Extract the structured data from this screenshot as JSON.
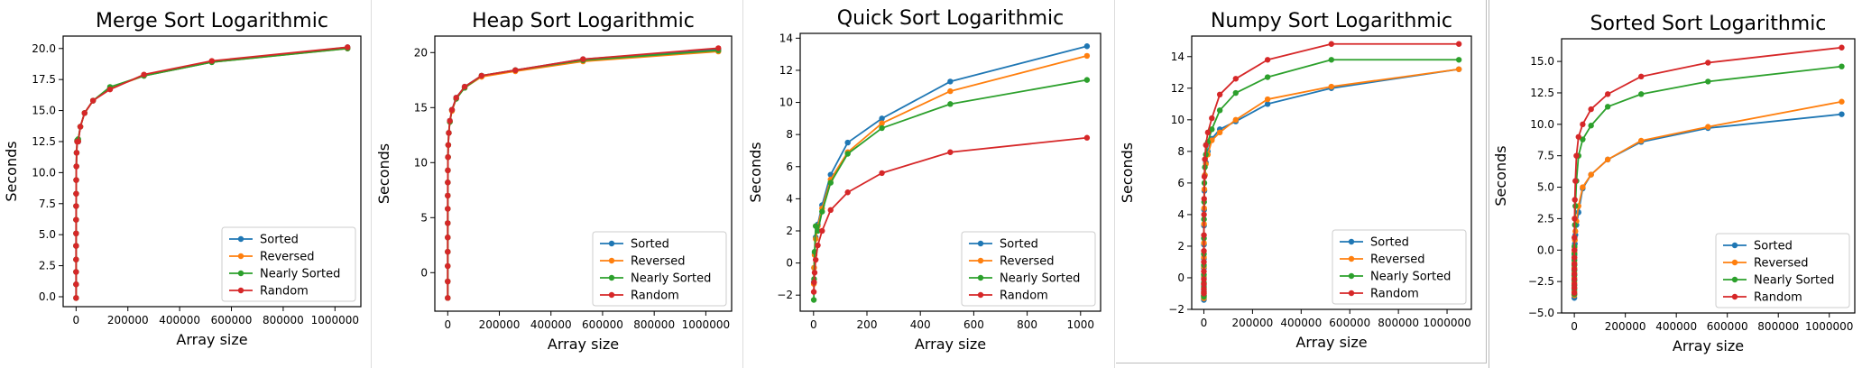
{
  "figure": {
    "series_colors": [
      "#1f77b4",
      "#ff7f0e",
      "#2ca02c",
      "#d62728"
    ]
  },
  "chart_data": [
    {
      "type": "line",
      "title": "Merge Sort Logarithmic",
      "xlabel": "Array size",
      "ylabel": "Seconds",
      "xlim": [
        -50000,
        1100000
      ],
      "ylim": [
        -0.8,
        21
      ],
      "xticks": [
        0,
        200000,
        400000,
        600000,
        800000,
        1000000
      ],
      "xticklabels": [
        "0",
        "200000",
        "400000",
        "600000",
        "800000",
        "1000000"
      ],
      "yticks": [
        0,
        2.5,
        5,
        7.5,
        10,
        12.5,
        15,
        17.5,
        20
      ],
      "yticklabels": [
        "0.0",
        "2.5",
        "5.0",
        "7.5",
        "10.0",
        "12.5",
        "15.0",
        "17.5",
        "20.0"
      ],
      "grid": false,
      "legend": "bottom-right",
      "x": [
        1,
        2,
        4,
        8,
        16,
        32,
        64,
        128,
        256,
        512,
        1024,
        2048,
        4096,
        8192,
        16384,
        32768,
        65536,
        131072,
        262144,
        524288,
        1048576
      ],
      "series": [
        {
          "name": "Sorted",
          "color": "#1f77b4",
          "values": [
            -0.1,
            1.0,
            2.0,
            3.0,
            4.1,
            5.1,
            6.2,
            7.3,
            8.3,
            9.4,
            10.5,
            11.6,
            12.5,
            12.5,
            13.7,
            14.8,
            15.8,
            16.8,
            17.8,
            18.9,
            20.1
          ]
        },
        {
          "name": "Reversed",
          "color": "#ff7f0e",
          "values": [
            -0.1,
            1.0,
            2.0,
            3.0,
            4.1,
            5.1,
            6.2,
            7.3,
            8.3,
            9.4,
            10.5,
            11.6,
            12.5,
            12.6,
            13.7,
            14.8,
            15.8,
            16.8,
            17.8,
            18.9,
            20.0
          ]
        },
        {
          "name": "Nearly Sorted",
          "color": "#2ca02c",
          "values": [
            -0.1,
            1.0,
            2.0,
            3.0,
            4.1,
            5.1,
            6.2,
            7.3,
            8.3,
            9.4,
            10.5,
            11.6,
            12.6,
            12.7,
            13.7,
            14.8,
            15.8,
            16.9,
            17.8,
            18.9,
            20.0
          ]
        },
        {
          "name": "Random",
          "color": "#d62728",
          "values": [
            -0.1,
            1.0,
            2.0,
            3.0,
            4.1,
            5.1,
            6.2,
            7.3,
            8.3,
            9.4,
            10.5,
            11.6,
            12.5,
            12.5,
            13.7,
            14.8,
            15.8,
            16.7,
            17.9,
            19.0,
            20.1
          ]
        }
      ]
    },
    {
      "type": "line",
      "title": "Heap Sort Logarithmic",
      "xlabel": "Array size",
      "ylabel": "Seconds",
      "xlim": [
        -50000,
        1100000
      ],
      "ylim": [
        -3.5,
        21.5
      ],
      "xticks": [
        0,
        200000,
        400000,
        600000,
        800000,
        1000000
      ],
      "xticklabels": [
        "0",
        "200000",
        "400000",
        "600000",
        "800000",
        "1000000"
      ],
      "yticks": [
        0,
        5,
        10,
        15,
        20
      ],
      "yticklabels": [
        "0",
        "5",
        "10",
        "15",
        "20"
      ],
      "grid": false,
      "legend": "bottom-right",
      "x": [
        1,
        2,
        4,
        8,
        16,
        32,
        64,
        128,
        256,
        512,
        1024,
        2048,
        4096,
        8192,
        16384,
        32768,
        65536,
        131072,
        262144,
        524288,
        1048576
      ],
      "series": [
        {
          "name": "Sorted",
          "color": "#1f77b4",
          "values": [
            -2.3,
            -0.8,
            0.6,
            1.9,
            3.2,
            4.5,
            5.8,
            7.0,
            8.2,
            9.3,
            10.5,
            11.6,
            12.7,
            13.8,
            14.8,
            15.9,
            16.9,
            17.9,
            18.4,
            19.4,
            20.3
          ]
        },
        {
          "name": "Reversed",
          "color": "#ff7f0e",
          "values": [
            -2.3,
            -0.8,
            0.6,
            1.9,
            3.2,
            4.5,
            5.8,
            7.0,
            8.2,
            9.3,
            10.5,
            11.6,
            12.7,
            13.7,
            14.7,
            15.8,
            16.8,
            17.8,
            18.3,
            19.2,
            20.1
          ]
        },
        {
          "name": "Nearly Sorted",
          "color": "#2ca02c",
          "values": [
            -2.3,
            -0.8,
            0.6,
            1.9,
            3.2,
            4.5,
            5.8,
            7.0,
            8.2,
            9.3,
            10.5,
            11.6,
            12.7,
            13.7,
            14.8,
            15.8,
            16.8,
            17.9,
            18.4,
            19.3,
            20.2
          ]
        },
        {
          "name": "Random",
          "color": "#d62728",
          "values": [
            -2.3,
            -0.8,
            0.6,
            1.9,
            3.2,
            4.5,
            5.8,
            7.0,
            8.2,
            9.3,
            10.5,
            11.6,
            12.7,
            13.8,
            14.8,
            15.9,
            16.9,
            17.9,
            18.4,
            19.4,
            20.4
          ]
        }
      ]
    },
    {
      "type": "line",
      "title": "Quick Sort Logarithmic",
      "xlabel": "Array size",
      "ylabel": "Seconds",
      "xlim": [
        -50,
        1075
      ],
      "ylim": [
        -3.0,
        14.3
      ],
      "xticks": [
        0,
        200,
        400,
        600,
        800,
        1000
      ],
      "xticklabels": [
        "0",
        "200",
        "400",
        "600",
        "800",
        "1000"
      ],
      "yticks": [
        -2,
        0,
        2,
        4,
        6,
        8,
        10,
        12,
        14
      ],
      "yticklabels": [
        "−2",
        "0",
        "2",
        "4",
        "6",
        "8",
        "10",
        "12",
        "14"
      ],
      "grid": false,
      "legend": "bottom-right",
      "x": [
        1,
        2,
        4,
        8,
        16,
        32,
        64,
        128,
        256,
        512,
        1024
      ],
      "series": [
        {
          "name": "Sorted",
          "color": "#1f77b4",
          "values": [
            -1.2,
            -0.3,
            0.6,
            1.6,
            2.4,
            3.6,
            5.5,
            7.5,
            9.0,
            11.3,
            13.5
          ]
        },
        {
          "name": "Reversed",
          "color": "#ff7f0e",
          "values": [
            -1.3,
            -0.3,
            0.5,
            1.5,
            2.3,
            3.4,
            5.2,
            6.9,
            8.7,
            10.7,
            12.9
          ]
        },
        {
          "name": "Nearly Sorted",
          "color": "#2ca02c",
          "values": [
            -2.3,
            -1.0,
            0.7,
            2.3,
            2.0,
            3.2,
            5.0,
            6.8,
            8.4,
            9.9,
            11.4
          ]
        },
        {
          "name": "Random",
          "color": "#d62728",
          "values": [
            -1.8,
            -1.2,
            -0.6,
            0.2,
            1.1,
            2.0,
            3.3,
            4.4,
            5.6,
            6.9,
            7.8
          ]
        }
      ]
    },
    {
      "type": "line",
      "title": "Numpy Sort Logarithmic",
      "xlabel": "Array size",
      "ylabel": "Seconds",
      "xlim": [
        -50000,
        1100000
      ],
      "ylim": [
        -2.0,
        15.3
      ],
      "xticks": [
        0,
        200000,
        400000,
        600000,
        800000,
        1000000
      ],
      "xticklabels": [
        "0",
        "200000",
        "400000",
        "600000",
        "800000",
        "1000000"
      ],
      "yticks": [
        -2,
        0,
        2,
        4,
        6,
        8,
        10,
        12,
        14
      ],
      "yticklabels": [
        "−2",
        "0",
        "2",
        "4",
        "6",
        "8",
        "10",
        "12",
        "14"
      ],
      "grid": false,
      "legend": "bottom-right",
      "x": [
        1,
        2,
        4,
        8,
        16,
        32,
        64,
        128,
        256,
        512,
        1024,
        2048,
        4096,
        8192,
        16384,
        32768,
        65536,
        131072,
        262144,
        524288,
        1048576
      ],
      "series": [
        {
          "name": "Sorted",
          "color": "#1f77b4",
          "values": [
            -1.4,
            -1.3,
            -1.1,
            -0.8,
            -0.5,
            0.0,
            0.6,
            1.2,
            2.1,
            3.3,
            4.3,
            5.5,
            6.5,
            7.3,
            8.0,
            8.8,
            9.4,
            9.9,
            11.0,
            12.0,
            13.2
          ]
        },
        {
          "name": "Reversed",
          "color": "#ff7f0e",
          "values": [
            -1.3,
            -1.2,
            -1.0,
            -0.7,
            -0.4,
            0.1,
            0.7,
            1.3,
            2.2,
            3.4,
            4.4,
            5.6,
            6.5,
            7.2,
            7.8,
            8.7,
            9.2,
            10.0,
            11.3,
            12.1,
            13.2
          ]
        },
        {
          "name": "Nearly Sorted",
          "color": "#2ca02c",
          "values": [
            -1.2,
            -1.1,
            -0.9,
            -0.6,
            -0.3,
            0.2,
            0.8,
            1.5,
            2.5,
            3.7,
            4.8,
            6.0,
            7.0,
            7.8,
            8.6,
            9.4,
            10.6,
            11.7,
            12.7,
            13.8,
            13.8
          ]
        },
        {
          "name": "Random",
          "color": "#d62728",
          "values": [
            -1.0,
            -0.9,
            -0.7,
            -0.4,
            -0.1,
            0.4,
            1.0,
            1.7,
            2.7,
            4.0,
            5.0,
            6.4,
            7.5,
            8.4,
            9.2,
            10.1,
            11.6,
            12.6,
            13.8,
            14.8,
            14.8
          ]
        }
      ]
    },
    {
      "type": "line",
      "title": "Sorted Sort Logarithmic",
      "xlabel": "Array size",
      "ylabel": "Seconds",
      "xlim": [
        -50000,
        1100000
      ],
      "ylim": [
        -5.0,
        16.8
      ],
      "xticks": [
        0,
        200000,
        400000,
        600000,
        800000,
        1000000
      ],
      "xticklabels": [
        "0",
        "200000",
        "400000",
        "600000",
        "800000",
        "1000000"
      ],
      "yticks": [
        -5,
        -2.5,
        0,
        2.5,
        5,
        7.5,
        10,
        12.5,
        15
      ],
      "yticklabels": [
        "−5.0",
        "−2.5",
        "0.0",
        "2.5",
        "5.0",
        "7.5",
        "10.0",
        "12.5",
        "15.0"
      ],
      "grid": false,
      "legend": "bottom-right",
      "x": [
        1,
        2,
        4,
        8,
        16,
        32,
        64,
        128,
        256,
        512,
        1024,
        2048,
        4096,
        8192,
        16384,
        32768,
        65536,
        131072,
        262144,
        524288,
        1048576
      ],
      "series": [
        {
          "name": "Sorted",
          "color": "#1f77b4",
          "values": [
            -3.8,
            -3.5,
            -3.2,
            -2.8,
            -2.4,
            -2.0,
            -1.6,
            -1.2,
            -0.8,
            -0.4,
            0.0,
            0.5,
            1.2,
            2.0,
            3.0,
            4.9,
            6.0,
            7.2,
            8.6,
            9.7,
            10.8
          ]
        },
        {
          "name": "Reversed",
          "color": "#ff7f0e",
          "values": [
            -3.6,
            -3.3,
            -3.0,
            -2.6,
            -2.2,
            -1.8,
            -1.4,
            -1.0,
            -0.6,
            -0.2,
            0.2,
            0.8,
            1.5,
            2.3,
            3.5,
            5.0,
            6.0,
            7.2,
            8.7,
            9.8,
            11.8
          ]
        },
        {
          "name": "Nearly Sorted",
          "color": "#2ca02c",
          "values": [
            -3.5,
            -3.1,
            -2.8,
            -2.4,
            -2.0,
            -1.6,
            -1.2,
            -0.8,
            -0.3,
            0.3,
            1.0,
            2.0,
            3.5,
            5.5,
            7.5,
            8.8,
            9.9,
            11.4,
            12.4,
            13.4,
            14.6
          ]
        },
        {
          "name": "Random",
          "color": "#d62728",
          "values": [
            -3.4,
            -3.0,
            -2.7,
            -2.3,
            -1.9,
            -1.5,
            -1.1,
            -0.6,
            0.0,
            1.0,
            2.5,
            4.0,
            5.5,
            7.5,
            9.0,
            10.0,
            11.2,
            12.4,
            13.8,
            14.9,
            16.1
          ]
        }
      ]
    }
  ]
}
